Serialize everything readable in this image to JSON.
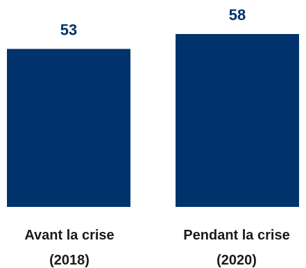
{
  "chart_data": {
    "type": "bar",
    "categories": [
      [
        "Avant la crise",
        "(2018)"
      ],
      [
        "Pendant la crise",
        "(2020)"
      ]
    ],
    "values": [
      53,
      58
    ],
    "ylim": [
      0,
      58
    ],
    "grid": false,
    "bar_color": "#00336B",
    "label_color": "#00336B",
    "category_color": "#1a1a1a"
  }
}
